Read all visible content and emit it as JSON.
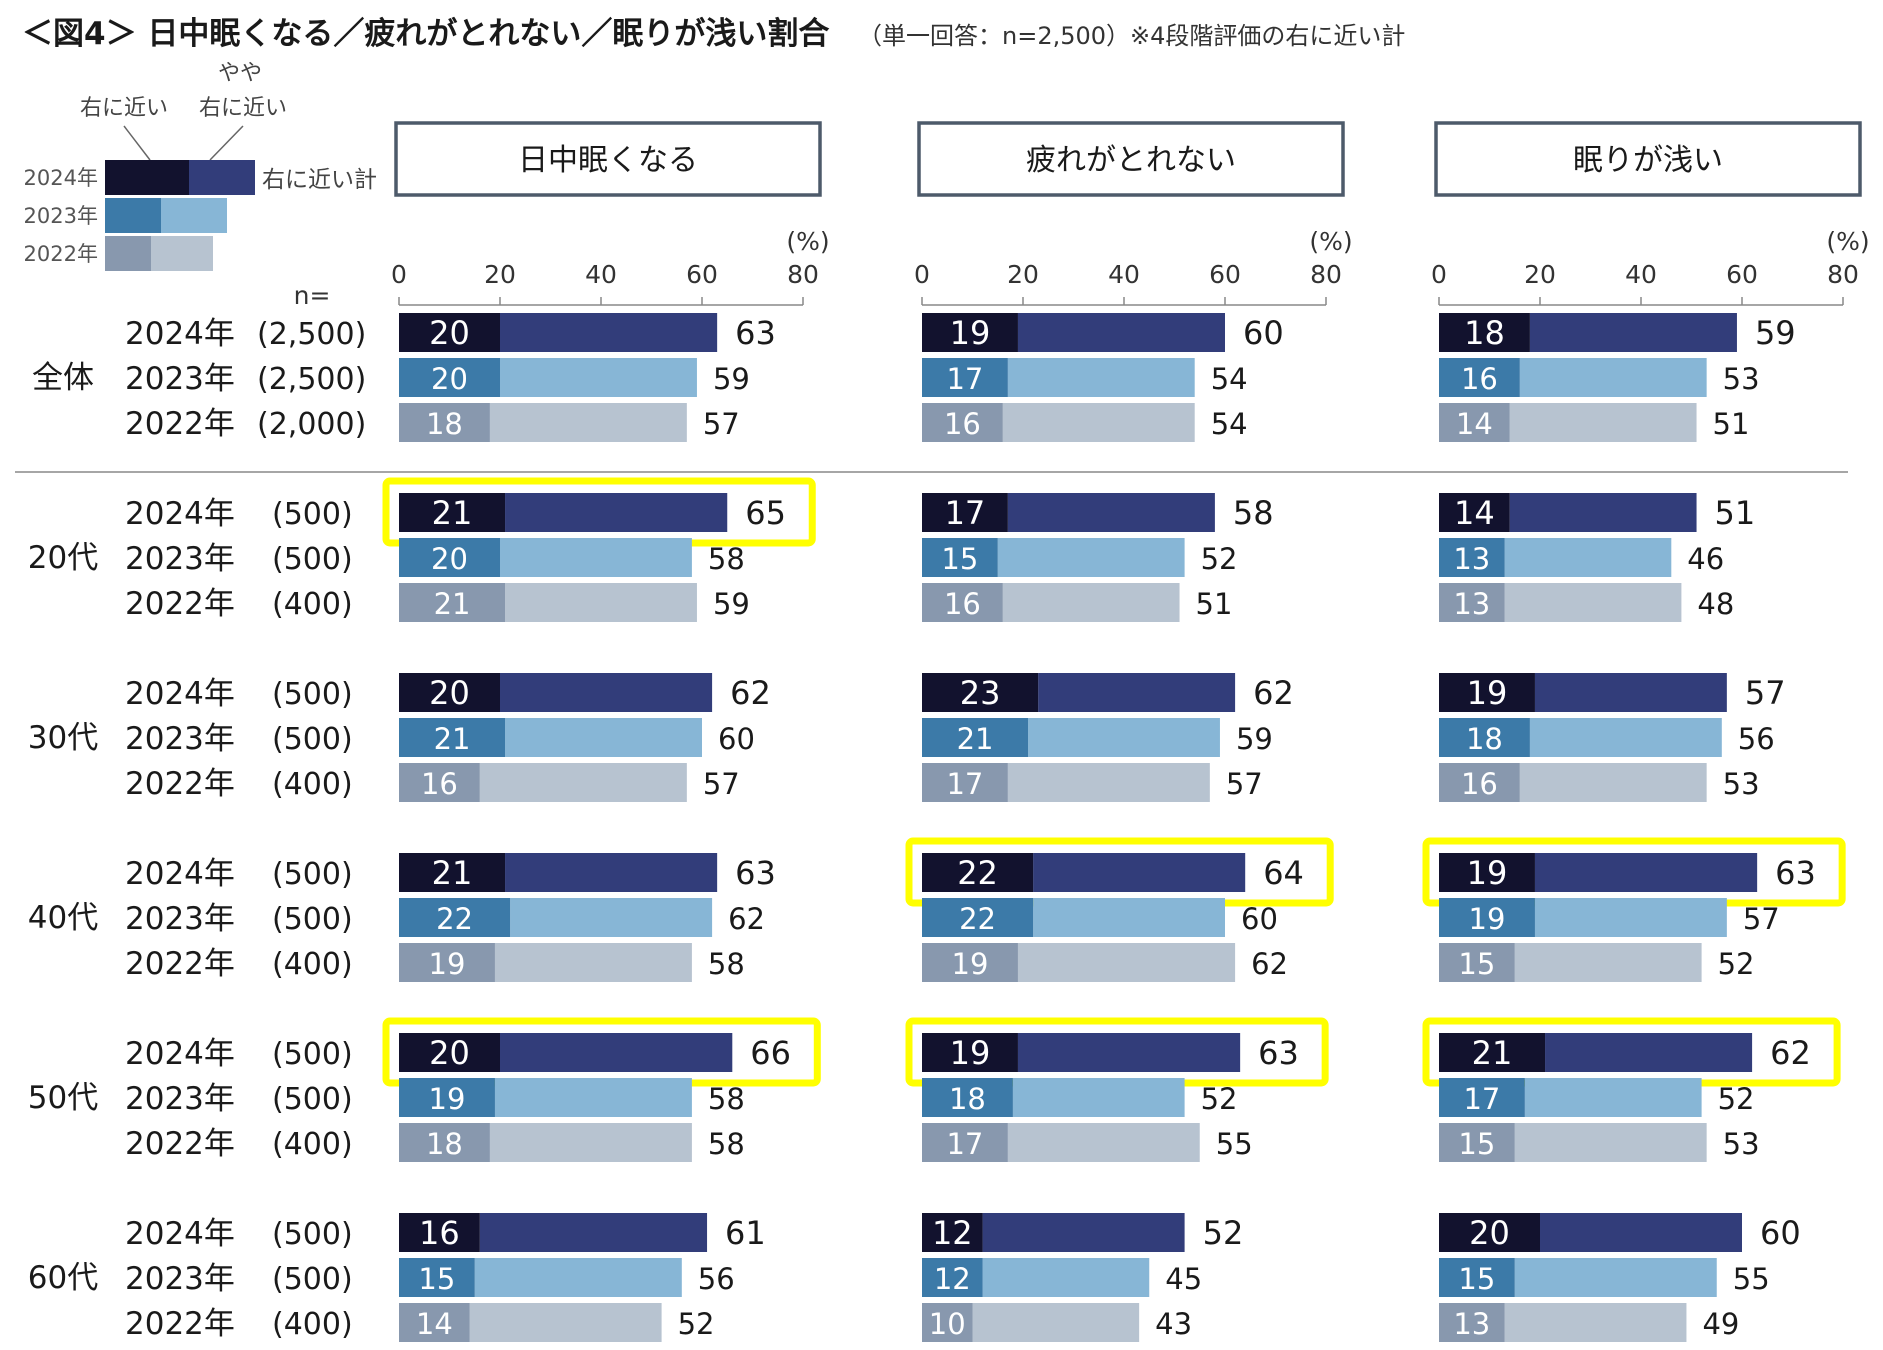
{
  "page": {
    "title": "＜図4＞ 日中眠くなる／疲れがとれない／眠りが浅い割合",
    "subtitle": "（単一回答：n=2,500）※4段階評価の右に近い計"
  },
  "legend": {
    "label_right": "右に近い",
    "label_somewhat_top": "やや",
    "label_somewhat_bottom": "右に近い",
    "label_total": "右に近い計",
    "years": [
      "2024年",
      "2023年",
      "2022年"
    ]
  },
  "colors": {
    "2024": {
      "right": "#12122e",
      "somewhat": "#323d7a"
    },
    "2023": {
      "right": "#3c7aa8",
      "somewhat": "#87b6d6"
    },
    "2022": {
      "right": "#8898ae",
      "somewhat": "#b7c3d0"
    },
    "highlight": "#ffff00",
    "panel_border": "#4d5a6a",
    "divider": "#888888"
  },
  "n_label": "n=",
  "chart_data": {
    "type": "bar",
    "orientation": "horizontal",
    "stacked": true,
    "unit": "(%)",
    "xlim": [
      0,
      80
    ],
    "xticks": [
      0,
      20,
      40,
      60,
      80
    ],
    "panels": [
      {
        "title": "日中眠くなる"
      },
      {
        "title": "疲れがとれない"
      },
      {
        "title": "眠りが浅い"
      }
    ],
    "series": [
      {
        "name": "右に近い",
        "role": "right"
      },
      {
        "name": "やや右に近い",
        "role": "somewhat"
      }
    ],
    "groups": [
      {
        "name": "全体",
        "rows": [
          {
            "year": "2024年",
            "n": "(2,500)",
            "values": [
              [
                20,
                63
              ],
              [
                19,
                60
              ],
              [
                18,
                59
              ]
            ],
            "highlight": [
              false,
              false,
              false
            ]
          },
          {
            "year": "2023年",
            "n": "(2,500)",
            "values": [
              [
                20,
                59
              ],
              [
                17,
                54
              ],
              [
                16,
                53
              ]
            ],
            "highlight": [
              false,
              false,
              false
            ]
          },
          {
            "year": "2022年",
            "n": "(2,000)",
            "values": [
              [
                18,
                57
              ],
              [
                16,
                54
              ],
              [
                14,
                51
              ]
            ],
            "highlight": [
              false,
              false,
              false
            ]
          }
        ]
      },
      {
        "name": "20代",
        "rows": [
          {
            "year": "2024年",
            "n": "(500)",
            "values": [
              [
                21,
                65
              ],
              [
                17,
                58
              ],
              [
                14,
                51
              ]
            ],
            "highlight": [
              true,
              false,
              false
            ]
          },
          {
            "year": "2023年",
            "n": "(500)",
            "values": [
              [
                20,
                58
              ],
              [
                15,
                52
              ],
              [
                13,
                46
              ]
            ],
            "highlight": [
              false,
              false,
              false
            ]
          },
          {
            "year": "2022年",
            "n": "(400)",
            "values": [
              [
                21,
                59
              ],
              [
                16,
                51
              ],
              [
                13,
                48
              ]
            ],
            "highlight": [
              false,
              false,
              false
            ]
          }
        ]
      },
      {
        "name": "30代",
        "rows": [
          {
            "year": "2024年",
            "n": "(500)",
            "values": [
              [
                20,
                62
              ],
              [
                23,
                62
              ],
              [
                19,
                57
              ]
            ],
            "highlight": [
              false,
              false,
              false
            ]
          },
          {
            "year": "2023年",
            "n": "(500)",
            "values": [
              [
                21,
                60
              ],
              [
                21,
                59
              ],
              [
                18,
                56
              ]
            ],
            "highlight": [
              false,
              false,
              false
            ]
          },
          {
            "year": "2022年",
            "n": "(400)",
            "values": [
              [
                16,
                57
              ],
              [
                17,
                57
              ],
              [
                16,
                53
              ]
            ],
            "highlight": [
              false,
              false,
              false
            ]
          }
        ]
      },
      {
        "name": "40代",
        "rows": [
          {
            "year": "2024年",
            "n": "(500)",
            "values": [
              [
                21,
                63
              ],
              [
                22,
                64
              ],
              [
                19,
                63
              ]
            ],
            "highlight": [
              false,
              true,
              true
            ]
          },
          {
            "year": "2023年",
            "n": "(500)",
            "values": [
              [
                22,
                62
              ],
              [
                22,
                60
              ],
              [
                19,
                57
              ]
            ],
            "highlight": [
              false,
              false,
              false
            ]
          },
          {
            "year": "2022年",
            "n": "(400)",
            "values": [
              [
                19,
                58
              ],
              [
                19,
                62
              ],
              [
                15,
                52
              ]
            ],
            "highlight": [
              false,
              false,
              false
            ]
          }
        ]
      },
      {
        "name": "50代",
        "rows": [
          {
            "year": "2024年",
            "n": "(500)",
            "values": [
              [
                20,
                66
              ],
              [
                19,
                63
              ],
              [
                21,
                62
              ]
            ],
            "highlight": [
              true,
              true,
              true
            ]
          },
          {
            "year": "2023年",
            "n": "(500)",
            "values": [
              [
                19,
                58
              ],
              [
                18,
                52
              ],
              [
                17,
                52
              ]
            ],
            "highlight": [
              false,
              false,
              false
            ]
          },
          {
            "year": "2022年",
            "n": "(400)",
            "values": [
              [
                18,
                58
              ],
              [
                17,
                55
              ],
              [
                15,
                53
              ]
            ],
            "highlight": [
              false,
              false,
              false
            ]
          }
        ]
      },
      {
        "name": "60代",
        "rows": [
          {
            "year": "2024年",
            "n": "(500)",
            "values": [
              [
                16,
                61
              ],
              [
                12,
                52
              ],
              [
                20,
                60
              ]
            ],
            "highlight": [
              false,
              false,
              false
            ]
          },
          {
            "year": "2023年",
            "n": "(500)",
            "values": [
              [
                15,
                56
              ],
              [
                12,
                45
              ],
              [
                15,
                55
              ]
            ],
            "highlight": [
              false,
              false,
              false
            ]
          },
          {
            "year": "2022年",
            "n": "(400)",
            "values": [
              [
                14,
                52
              ],
              [
                10,
                43
              ],
              [
                13,
                49
              ]
            ],
            "highlight": [
              false,
              false,
              false
            ]
          }
        ]
      }
    ]
  }
}
